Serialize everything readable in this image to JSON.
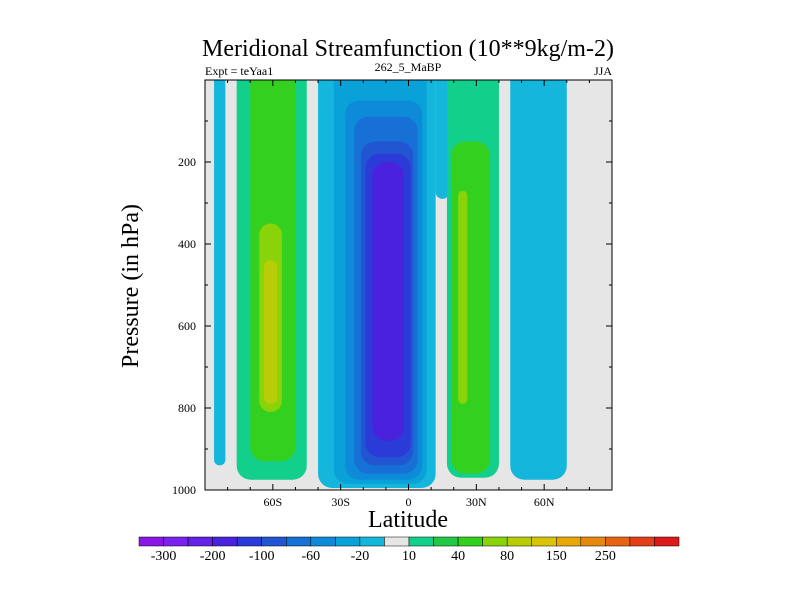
{
  "chart_data": {
    "type": "heatmap",
    "title": "Meridional Streamfunction (10**9kg/m-2)",
    "subtitle_left": "Expt = teYaa1",
    "subtitle_center": "262_5_MaBP",
    "subtitle_right": "JJA",
    "xlabel": "Latitude",
    "ylabel": "Pressure (in hPa)",
    "xlim": [
      -90,
      90
    ],
    "ylim": [
      1000,
      0
    ],
    "x_ticks": [
      {
        "value": -60,
        "label": "60S"
      },
      {
        "value": -30,
        "label": "30S"
      },
      {
        "value": 0,
        "label": "0"
      },
      {
        "value": 30,
        "label": "30N"
      },
      {
        "value": 60,
        "label": "60N"
      }
    ],
    "y_ticks": [
      {
        "value": 200,
        "label": "200"
      },
      {
        "value": 400,
        "label": "400"
      },
      {
        "value": 600,
        "label": "600"
      },
      {
        "value": 800,
        "label": "800"
      },
      {
        "value": 1000,
        "label": "1000"
      }
    ],
    "colorbar": {
      "colors": [
        "#8a17e6",
        "#7a22ee",
        "#6421e8",
        "#4a22de",
        "#2a3bd8",
        "#2255d2",
        "#1670d6",
        "#0d8ad8",
        "#0aa0d8",
        "#14b6dc",
        "#e6e6e6",
        "#12d08c",
        "#22c845",
        "#34d020",
        "#8ad20a",
        "#b8cc08",
        "#d8c40a",
        "#e8a80a",
        "#e6880c",
        "#e66414",
        "#e2401a",
        "#dc1a1a"
      ],
      "tick_labels": [
        "-300",
        "-200",
        "-100",
        "-60",
        "-20",
        "10",
        "40",
        "80",
        "150",
        "250"
      ],
      "tick_boundaries": [
        1,
        3,
        5,
        7,
        9,
        11,
        13,
        15,
        17,
        19
      ]
    },
    "regions": [
      {
        "name": "sh-high-lat-light-blue",
        "color": "#14b6dc",
        "lat_min": -86,
        "lat_max": -81,
        "p_top": 0,
        "p_bottom": 940
      },
      {
        "name": "sh-mid-lat-teal",
        "color": "#12d08c",
        "lat_min": -76,
        "lat_max": -45,
        "p_top": 0,
        "p_bottom": 975
      },
      {
        "name": "sh-mid-lat-green",
        "color": "#34d020",
        "lat_min": -70,
        "lat_max": -50,
        "p_top": 0,
        "p_bottom": 930
      },
      {
        "name": "sh-ferrel-core-yellow-green",
        "color": "#8ad20a",
        "lat_min": -66,
        "lat_max": -56,
        "p_top": 350,
        "p_bottom": 810
      },
      {
        "name": "sh-ferrel-max",
        "color": "#b8cc08",
        "lat_min": -64,
        "lat_max": -58,
        "p_top": 440,
        "p_bottom": 790
      },
      {
        "name": "hadley-outer-light-blue",
        "color": "#14b6dc",
        "lat_min": -40,
        "lat_max": 12,
        "p_top": 0,
        "p_bottom": 995
      },
      {
        "name": "hadley-blue-1",
        "color": "#0aa0d8",
        "lat_min": -33,
        "lat_max": 8,
        "p_top": 0,
        "p_bottom": 985
      },
      {
        "name": "hadley-blue-2",
        "color": "#0d8ad8",
        "lat_min": -28,
        "lat_max": 6,
        "p_top": 50,
        "p_bottom": 975
      },
      {
        "name": "hadley-blue-3",
        "color": "#1670d6",
        "lat_min": -24,
        "lat_max": 4,
        "p_top": 90,
        "p_bottom": 960
      },
      {
        "name": "hadley-blue-4",
        "color": "#2255d2",
        "lat_min": -21,
        "lat_max": 2,
        "p_top": 150,
        "p_bottom": 940
      },
      {
        "name": "hadley-blue-5",
        "color": "#2a3bd8",
        "lat_min": -19,
        "lat_max": 1,
        "p_top": 180,
        "p_bottom": 920
      },
      {
        "name": "hadley-core-indigo",
        "color": "#4a22de",
        "lat_min": -16,
        "lat_max": -2,
        "p_top": 200,
        "p_bottom": 880
      },
      {
        "name": "nh-subtropics-light-blue",
        "color": "#14b6dc",
        "lat_min": 12,
        "lat_max": 18,
        "p_top": 0,
        "p_bottom": 290
      },
      {
        "name": "nh-ferrel-teal",
        "color": "#12d08c",
        "lat_min": 17,
        "lat_max": 40,
        "p_top": 0,
        "p_bottom": 970
      },
      {
        "name": "nh-ferrel-green",
        "color": "#34d020",
        "lat_min": 19,
        "lat_max": 36,
        "p_top": 150,
        "p_bottom": 960
      },
      {
        "name": "nh-ferrel-yellow-green",
        "color": "#8ad20a",
        "lat_min": 22,
        "lat_max": 26,
        "p_top": 270,
        "p_bottom": 790
      },
      {
        "name": "nh-high-lat-light-blue",
        "color": "#14b6dc",
        "lat_min": 45,
        "lat_max": 70,
        "p_top": 0,
        "p_bottom": 975
      }
    ]
  }
}
